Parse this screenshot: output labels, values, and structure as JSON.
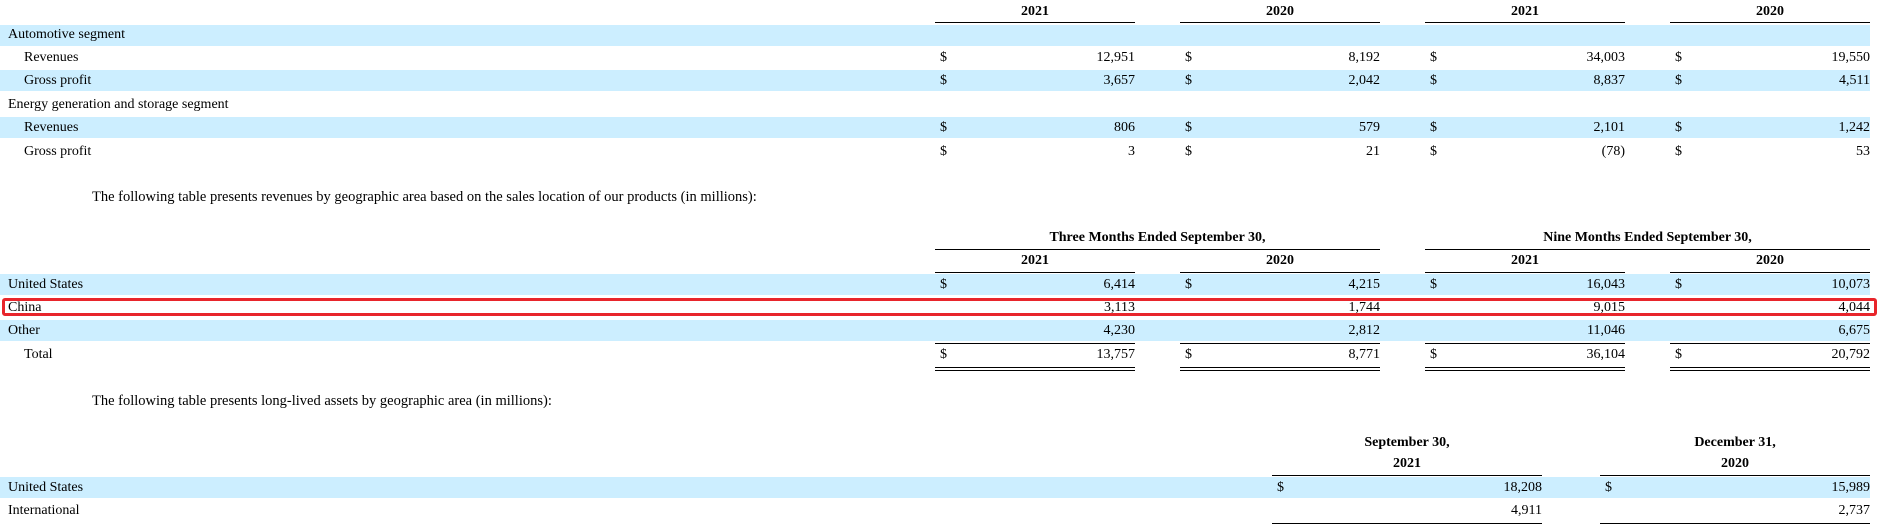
{
  "segment_table": {
    "headers": [
      "2021",
      "2020",
      "2021",
      "2020"
    ],
    "rows": [
      {
        "label": "Automotive segment",
        "section": true
      },
      {
        "label": "Revenues",
        "cells": [
          {
            "dol": "$",
            "val": "12,951"
          },
          {
            "dol": "$",
            "val": "8,192"
          },
          {
            "dol": "$",
            "val": "34,003"
          },
          {
            "dol": "$",
            "val": "19,550"
          }
        ]
      },
      {
        "label": "Gross profit",
        "cells": [
          {
            "dol": "$",
            "val": "3,657"
          },
          {
            "dol": "$",
            "val": "2,042"
          },
          {
            "dol": "$",
            "val": "8,837"
          },
          {
            "dol": "$",
            "val": "4,511"
          }
        ]
      },
      {
        "label": "Energy generation and storage segment",
        "section": true
      },
      {
        "label": "Revenues",
        "cells": [
          {
            "dol": "$",
            "val": "806"
          },
          {
            "dol": "$",
            "val": "579"
          },
          {
            "dol": "$",
            "val": "2,101"
          },
          {
            "dol": "$",
            "val": "1,242"
          }
        ]
      },
      {
        "label": "Gross profit",
        "cells": [
          {
            "dol": "$",
            "val": "3"
          },
          {
            "dol": "$",
            "val": "21"
          },
          {
            "dol": "$",
            "val": "(78)"
          },
          {
            "dol": "$",
            "val": "53"
          }
        ]
      }
    ]
  },
  "paragraph_revenue": "The following table presents revenues by geographic area based on the sales location of our products (in millions):",
  "revenue_table": {
    "group_headers": [
      "Three Months Ended September 30,",
      "Nine Months Ended September 30,"
    ],
    "headers": [
      "2021",
      "2020",
      "2021",
      "2020"
    ],
    "rows": [
      {
        "label": "United States",
        "cells": [
          {
            "dol": "$",
            "val": "6,414"
          },
          {
            "dol": "$",
            "val": "4,215"
          },
          {
            "dol": "$",
            "val": "16,043"
          },
          {
            "dol": "$",
            "val": "10,073"
          }
        ]
      },
      {
        "label": "China",
        "cells": [
          {
            "dol": "",
            "val": "3,113"
          },
          {
            "dol": "",
            "val": "1,744"
          },
          {
            "dol": "",
            "val": "9,015"
          },
          {
            "dol": "",
            "val": "4,044"
          }
        ]
      },
      {
        "label": "Other",
        "cells": [
          {
            "dol": "",
            "val": "4,230"
          },
          {
            "dol": "",
            "val": "2,812"
          },
          {
            "dol": "",
            "val": "11,046"
          },
          {
            "dol": "",
            "val": "6,675"
          }
        ]
      },
      {
        "label": "Total",
        "cells": [
          {
            "dol": "$",
            "val": "13,757"
          },
          {
            "dol": "$",
            "val": "8,771"
          },
          {
            "dol": "$",
            "val": "36,104"
          },
          {
            "dol": "$",
            "val": "20,792"
          }
        ]
      }
    ]
  },
  "paragraph_assets": "The following table presents long-lived assets by geographic area (in millions):",
  "assets_table": {
    "headers": [
      {
        "line1": "September 30,",
        "line2": "2021"
      },
      {
        "line1": "December 31,",
        "line2": "2020"
      }
    ],
    "rows": [
      {
        "label": "United States",
        "cells": [
          {
            "dol": "$",
            "val": "18,208"
          },
          {
            "dol": "$",
            "val": "15,989"
          }
        ]
      },
      {
        "label": "International",
        "cells": [
          {
            "dol": "",
            "val": "4,911"
          },
          {
            "dol": "",
            "val": "2,737"
          }
        ]
      }
    ]
  },
  "highlight_color": "#e8252b",
  "band_color": "#cceeff"
}
